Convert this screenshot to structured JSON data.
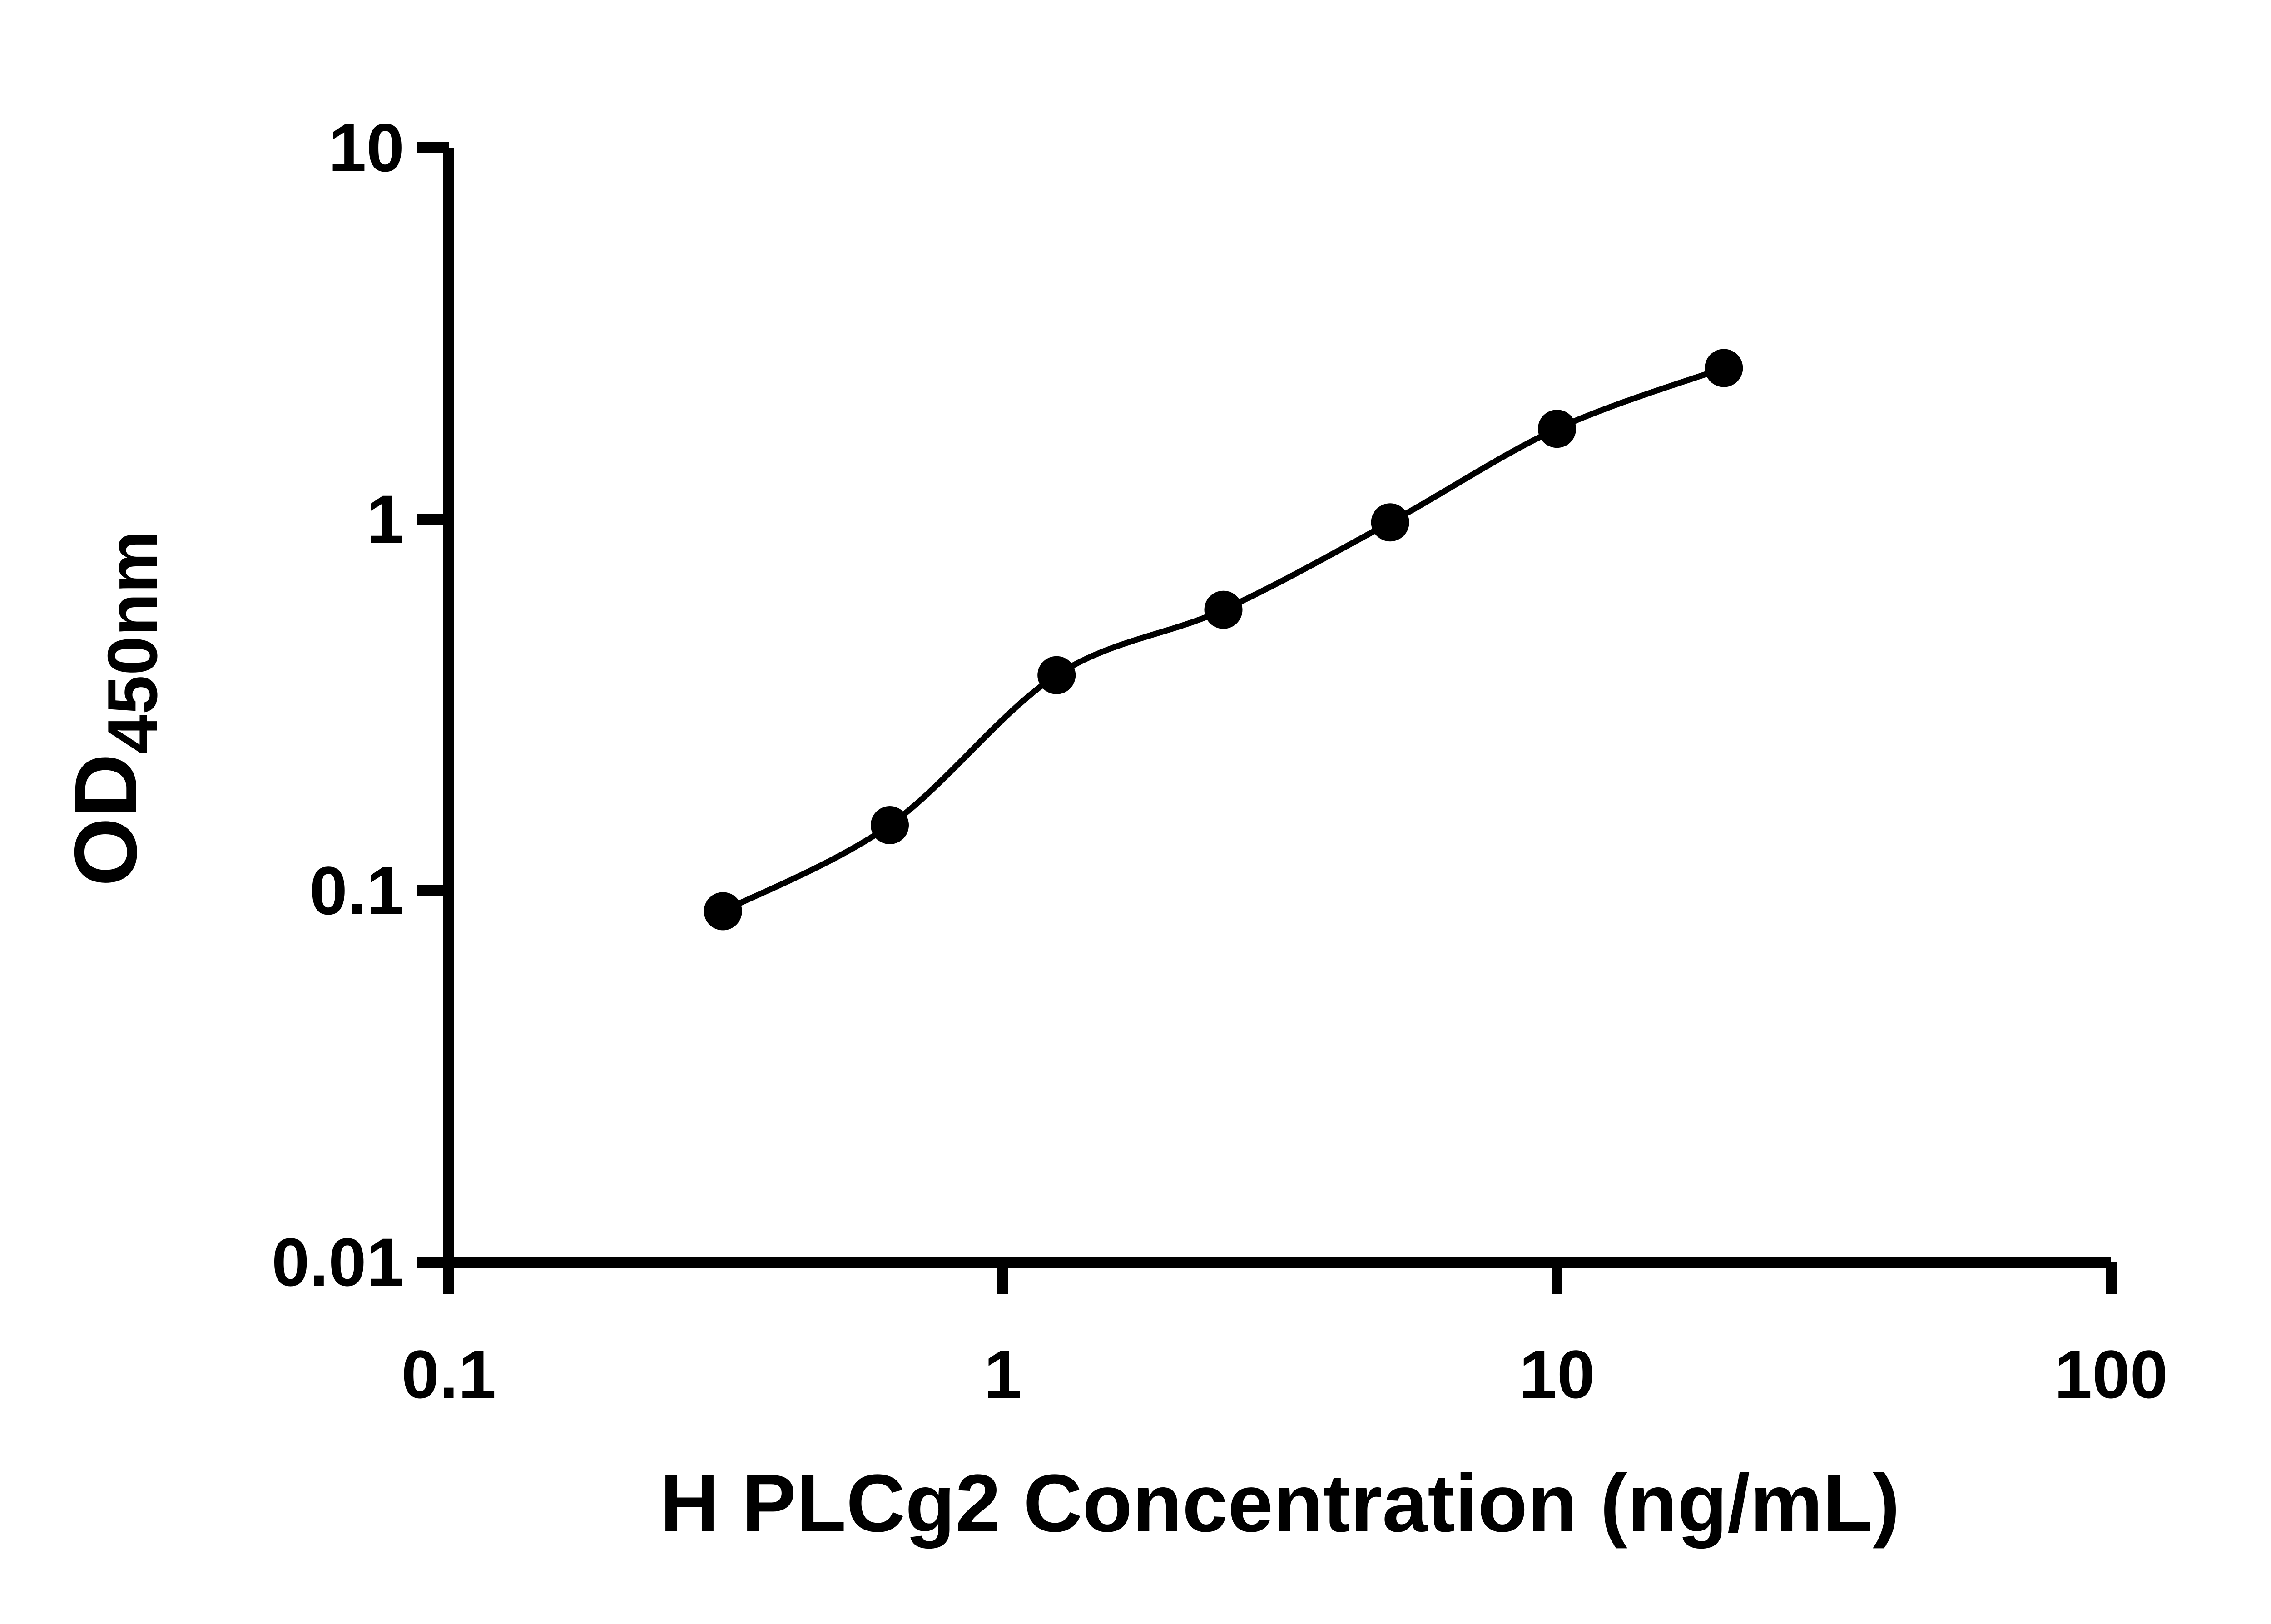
{
  "chart_data": {
    "type": "scatter",
    "title": "",
    "xlabel": "H PLCg2 Concentration (ng/mL)",
    "ylabel": "OD450nm",
    "ylabel_main": "OD",
    "ylabel_sub": "450nm",
    "x_scale": "log10",
    "y_scale": "log10",
    "xlim": [
      0.1,
      100
    ],
    "ylim": [
      0.01,
      10
    ],
    "grid": false,
    "legend": "none",
    "x_ticks": [
      {
        "value": 0.1,
        "label": "0.1"
      },
      {
        "value": 1,
        "label": "1"
      },
      {
        "value": 10,
        "label": "10"
      },
      {
        "value": 100,
        "label": "100"
      }
    ],
    "y_ticks": [
      {
        "value": 0.01,
        "label": "0.01"
      },
      {
        "value": 0.1,
        "label": "0.1"
      },
      {
        "value": 1,
        "label": "1"
      },
      {
        "value": 10,
        "label": "10"
      }
    ],
    "series": [
      {
        "marker": "filled-circle",
        "fit_curve": true,
        "points": [
          {
            "x": 0.3125,
            "y": 0.088
          },
          {
            "x": 0.625,
            "y": 0.15
          },
          {
            "x": 1.25,
            "y": 0.38
          },
          {
            "x": 2.5,
            "y": 0.57
          },
          {
            "x": 5,
            "y": 0.98
          },
          {
            "x": 10,
            "y": 1.75
          },
          {
            "x": 20,
            "y": 2.55
          }
        ]
      }
    ],
    "colors": {
      "axis": "#000000",
      "text": "#000000",
      "marker": "#000000",
      "line": "#000000",
      "background": "#ffffff"
    }
  }
}
